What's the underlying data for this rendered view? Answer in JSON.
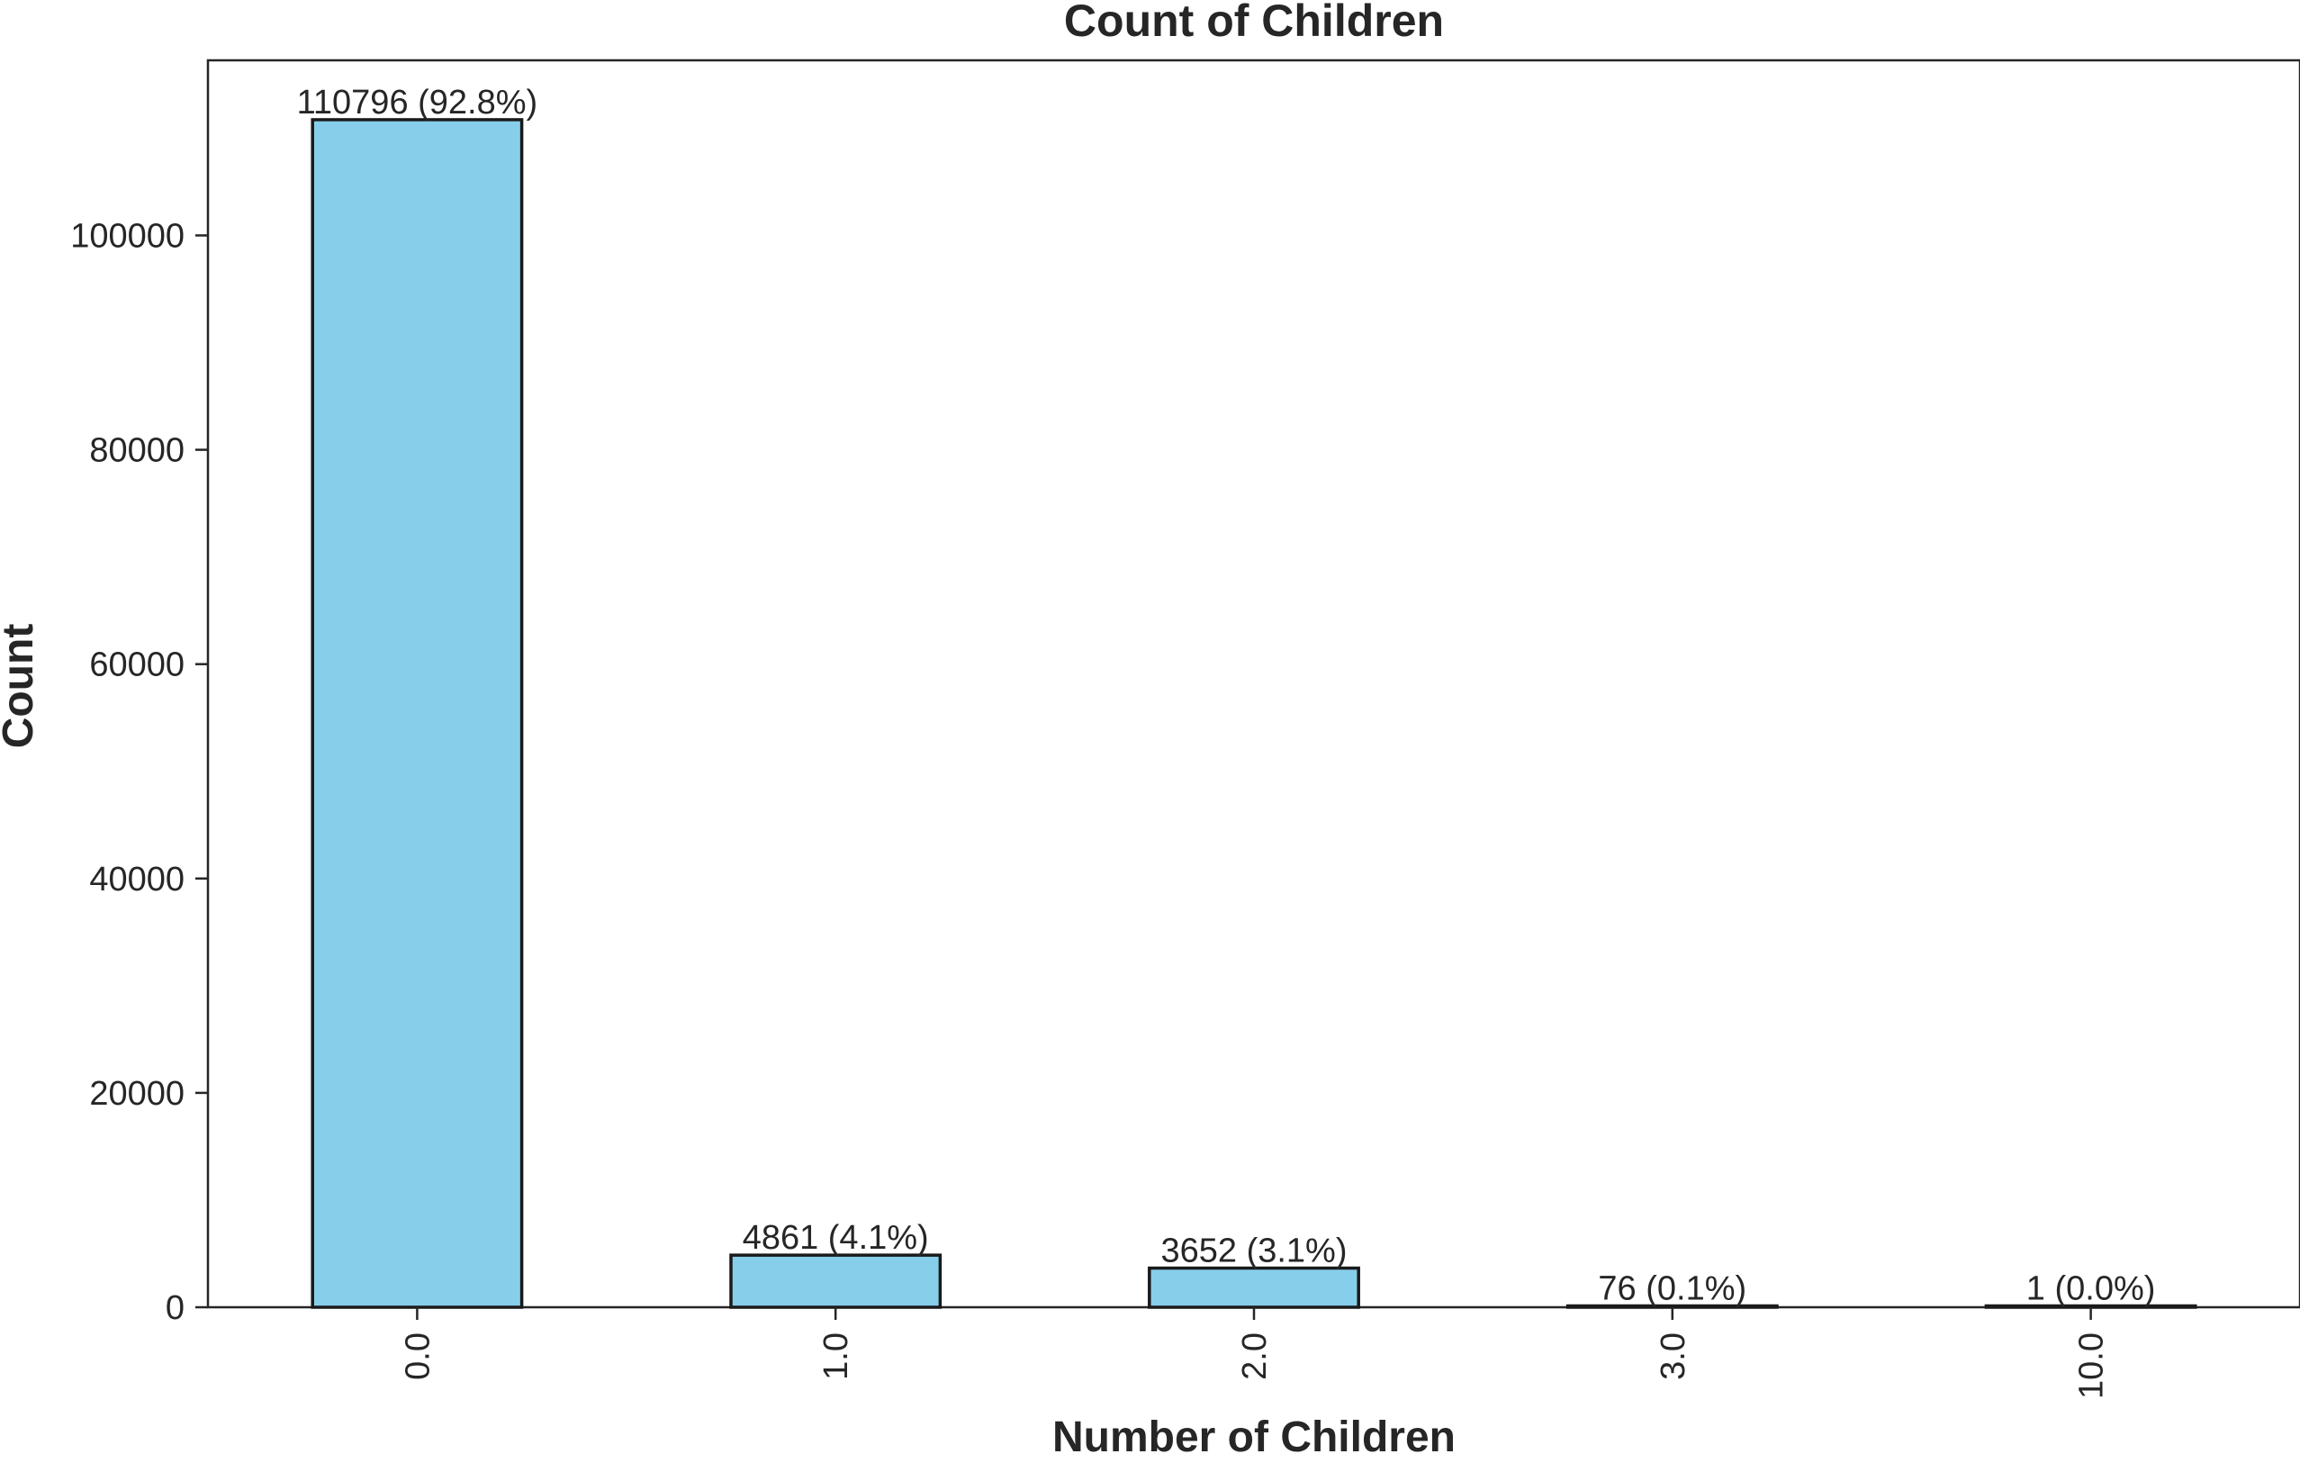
{
  "chart_data": {
    "type": "bar",
    "title": "Count of Children",
    "xlabel": "Number of Children",
    "ylabel": "Count",
    "categories": [
      "0.0",
      "1.0",
      "2.0",
      "3.0",
      "10.0"
    ],
    "values": [
      110796,
      4861,
      3652,
      76,
      1
    ],
    "bar_labels": [
      "110796 (92.8%)",
      "4861 (4.1%)",
      "3652 (3.1%)",
      "76 (0.1%)",
      "1 (0.0%)"
    ],
    "yticks": [
      0,
      20000,
      40000,
      60000,
      80000,
      100000
    ],
    "ytick_labels": [
      "0",
      "20000",
      "40000",
      "60000",
      "80000",
      "100000"
    ],
    "ylim": [
      0,
      116336
    ],
    "grid": false,
    "legend": "none",
    "bar_color": "#87ceeb",
    "edge_color": "#1a1a1a"
  }
}
